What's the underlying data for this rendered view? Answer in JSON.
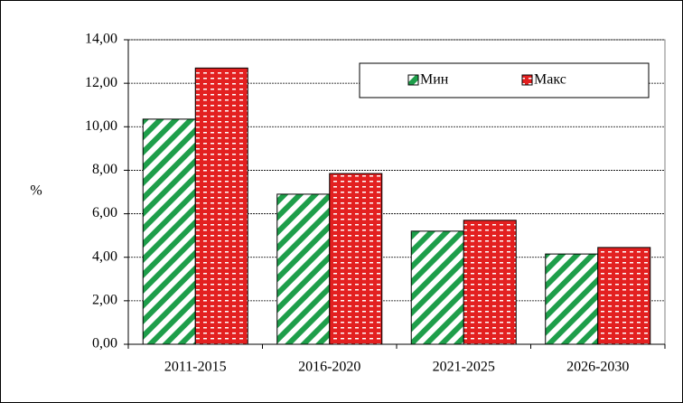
{
  "chart_data": {
    "type": "bar",
    "y_label": "%",
    "categories": [
      "2011-2015",
      "2016-2020",
      "2021-2025",
      "2026-2030"
    ],
    "series": [
      {
        "name": "Мин",
        "color": "#1e9e4a",
        "values": [
          10.35,
          6.9,
          5.2,
          4.15
        ]
      },
      {
        "name": "Макс",
        "color": "#e32020",
        "values": [
          12.7,
          7.85,
          5.7,
          4.45
        ]
      }
    ],
    "ylim": [
      0,
      14
    ],
    "yticks": [
      {
        "value": 0,
        "label": "0,00"
      },
      {
        "value": 2,
        "label": "2,00"
      },
      {
        "value": 4,
        "label": "4,00"
      },
      {
        "value": 6,
        "label": "6,00"
      },
      {
        "value": 8,
        "label": "8,00"
      },
      {
        "value": 10,
        "label": "10,00"
      },
      {
        "value": 12,
        "label": "12,00"
      },
      {
        "value": 14,
        "label": "14,00"
      }
    ],
    "grid": true
  }
}
